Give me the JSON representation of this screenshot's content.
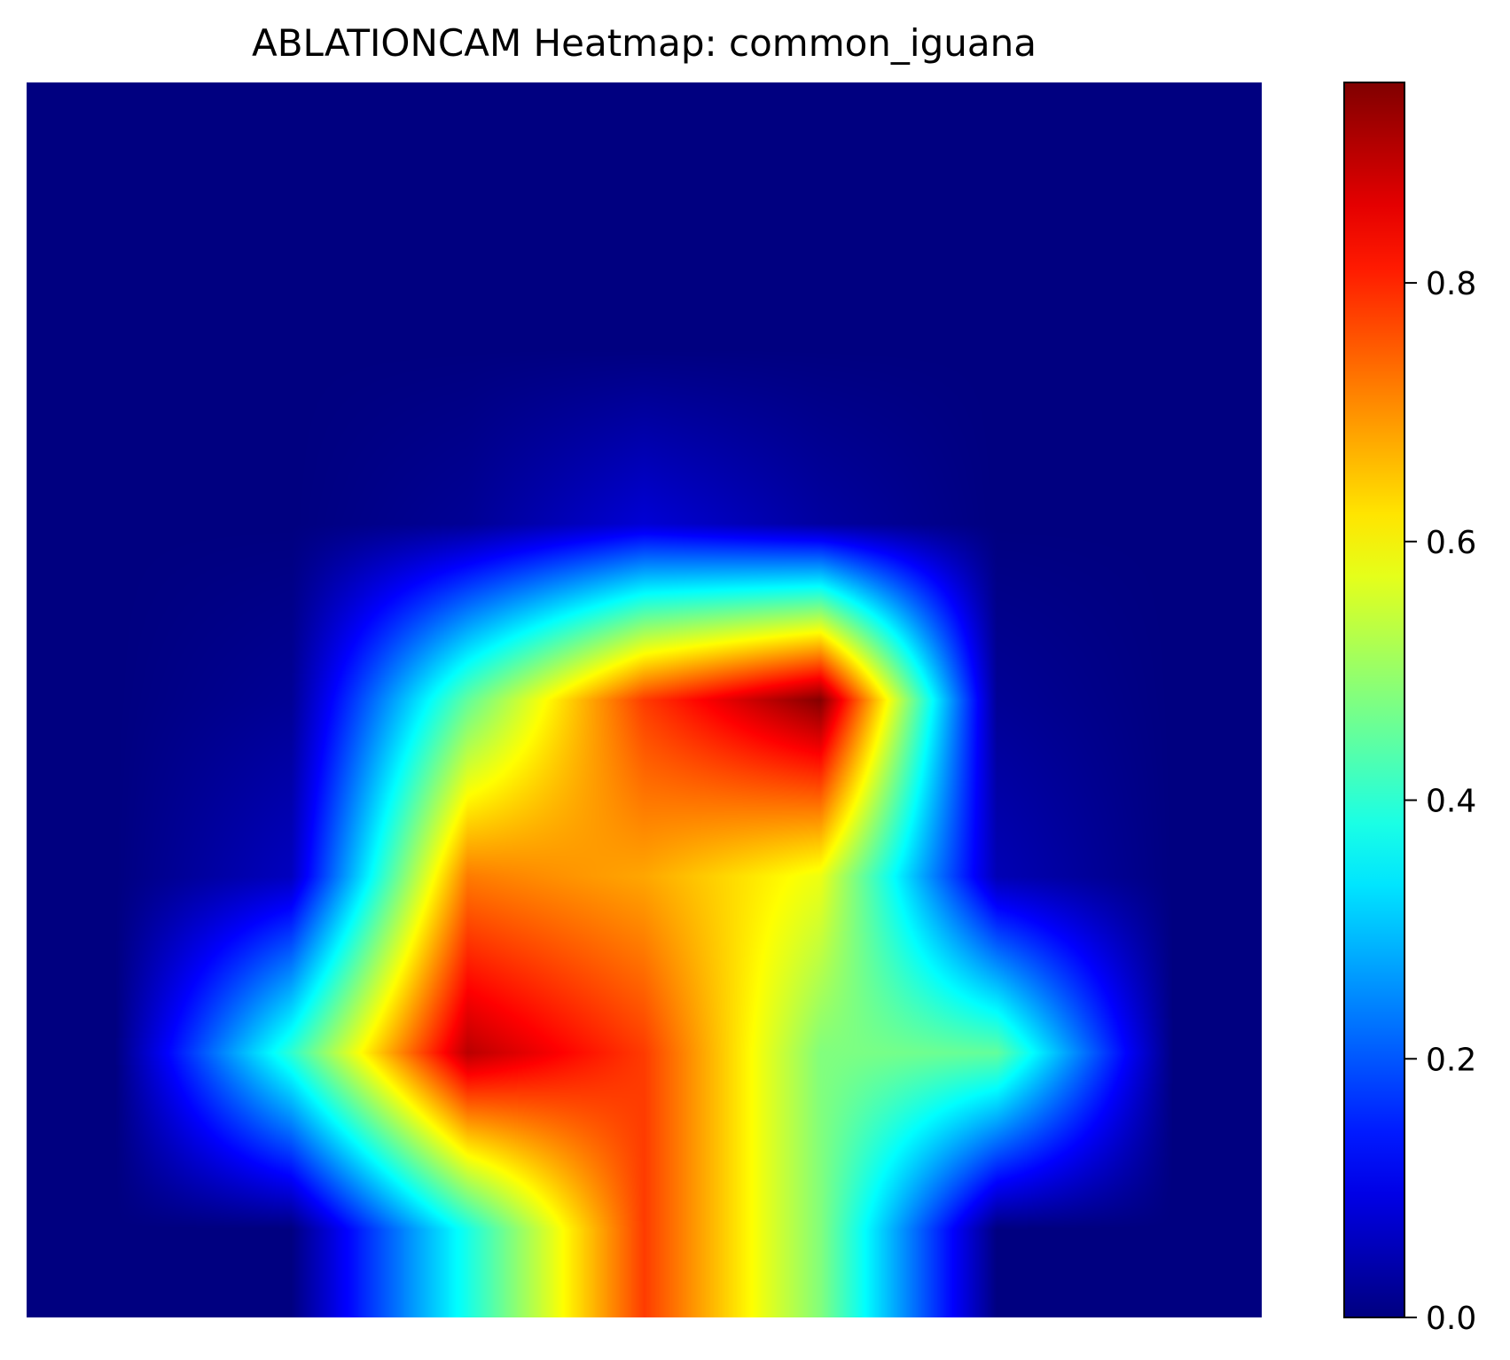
{
  "chart_data": {
    "type": "heatmap",
    "title": "ABLATIONCAM Heatmap: common_iguana",
    "colormap": "jet",
    "axes_visible": false,
    "value_range": [
      0,
      0.955
    ],
    "colorbar": {
      "ticks": [
        0.0,
        0.2,
        0.4,
        0.6,
        0.8
      ],
      "tick_labels": [
        "0.0",
        "0.2",
        "0.4",
        "0.6",
        "0.8"
      ]
    },
    "grid_rows": 7,
    "grid_cols": 7,
    "values": [
      [
        0.0,
        0.0,
        0.0,
        0.0,
        0.0,
        0.0,
        0.0
      ],
      [
        0.0,
        0.0,
        0.0,
        0.0,
        0.0,
        0.0,
        0.0
      ],
      [
        0.0,
        0.0,
        0.02,
        0.08,
        0.03,
        0.0,
        0.0
      ],
      [
        0.0,
        0.02,
        0.45,
        0.78,
        0.95,
        0.02,
        0.0
      ],
      [
        0.0,
        0.06,
        0.72,
        0.68,
        0.58,
        0.05,
        0.0
      ],
      [
        0.0,
        0.4,
        0.9,
        0.78,
        0.48,
        0.45,
        0.0
      ],
      [
        0.0,
        0.0,
        0.38,
        0.78,
        0.48,
        0.0,
        0.0
      ]
    ]
  }
}
